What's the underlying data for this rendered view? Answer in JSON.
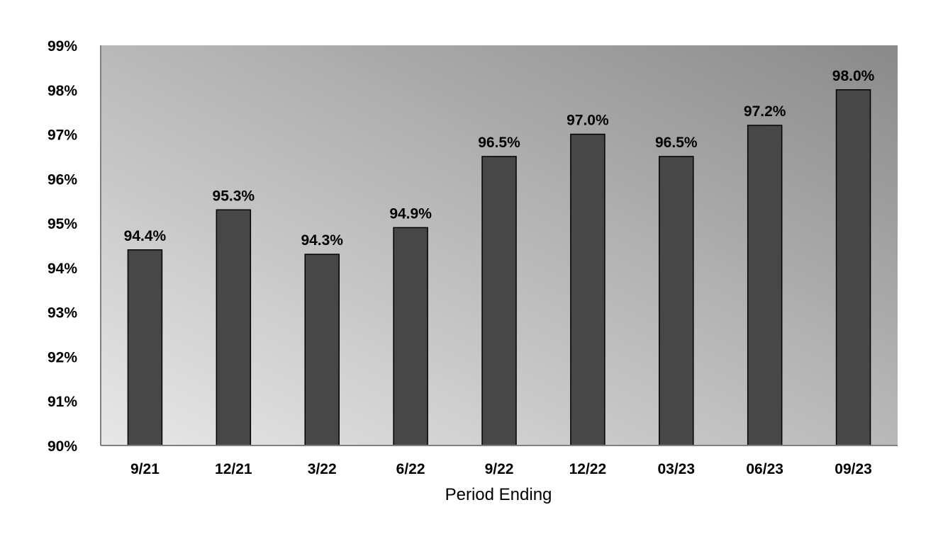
{
  "chart_data": {
    "type": "bar",
    "title": "",
    "xlabel": "Period Ending",
    "ylabel": "",
    "categories": [
      "9/21",
      "12/21",
      "3/22",
      "6/22",
      "9/22",
      "12/22",
      "03/23",
      "06/23",
      "09/23"
    ],
    "values": [
      94.4,
      95.3,
      94.3,
      94.9,
      96.5,
      97.0,
      96.5,
      97.2,
      98.0
    ],
    "data_labels": [
      "94.4%",
      "95.3%",
      "94.3%",
      "94.9%",
      "96.5%",
      "97.0%",
      "96.5%",
      "97.2%",
      "98.0%"
    ],
    "ylim": [
      90,
      99
    ],
    "y_ticks": [
      90,
      91,
      92,
      93,
      94,
      95,
      96,
      97,
      98,
      99
    ],
    "y_tick_labels": [
      "90%",
      "91%",
      "92%",
      "93%",
      "94%",
      "95%",
      "96%",
      "97%",
      "98%",
      "99%"
    ],
    "grid": false,
    "legend": "none",
    "colors": {
      "bar_fill": "#474747",
      "bar_stroke": "#000000",
      "plot_gradient_light": "#e8e8ea",
      "plot_gradient_dark": "#8a8a8a"
    }
  }
}
